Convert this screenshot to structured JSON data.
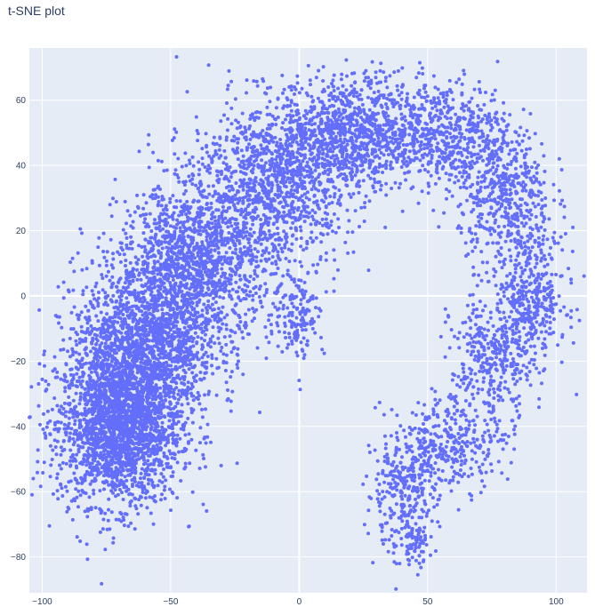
{
  "chart_data": {
    "type": "scatter",
    "title": "t-SNE plot",
    "xlabel": "",
    "ylabel": "",
    "xlim": [
      -105,
      112
    ],
    "ylim": [
      -91,
      76
    ],
    "grid": true,
    "legend": "none",
    "x_ticks": [
      -100,
      -50,
      0,
      50,
      100
    ],
    "y_ticks": [
      -80,
      -60,
      -40,
      -20,
      0,
      20,
      40,
      60
    ],
    "x_tick_labels": [
      "−100",
      "−50",
      "0",
      "50",
      "100"
    ],
    "y_tick_labels": [
      "−80",
      "−60",
      "−40",
      "−20",
      "0",
      "20",
      "40",
      "60"
    ],
    "approx_point_count": 9000,
    "series": [
      {
        "color": "#636efa",
        "marker_size": 3,
        "regions": [
          {
            "cx": -70,
            "cy": -40,
            "sx": 12,
            "sy": 12,
            "n": 2200
          },
          {
            "cx": -60,
            "cy": -15,
            "sx": 14,
            "sy": 12,
            "n": 1500
          },
          {
            "cx": -40,
            "cy": 10,
            "sx": 15,
            "sy": 12,
            "n": 1400
          },
          {
            "cx": -10,
            "cy": 35,
            "sx": 16,
            "sy": 12,
            "n": 1100
          },
          {
            "cx": 20,
            "cy": 50,
            "sx": 14,
            "sy": 9,
            "n": 900
          },
          {
            "cx": 55,
            "cy": 50,
            "sx": 14,
            "sy": 8,
            "n": 600
          },
          {
            "cx": 80,
            "cy": 30,
            "sx": 9,
            "sy": 10,
            "n": 450
          },
          {
            "cx": 90,
            "cy": 0,
            "sx": 7,
            "sy": 10,
            "n": 400
          },
          {
            "cx": 75,
            "cy": -20,
            "sx": 8,
            "sy": 10,
            "n": 350
          },
          {
            "cx": 60,
            "cy": -45,
            "sx": 10,
            "sy": 7,
            "n": 300
          },
          {
            "cx": 40,
            "cy": -60,
            "sx": 7,
            "sy": 9,
            "n": 300
          },
          {
            "cx": 45,
            "cy": -75,
            "sx": 3,
            "sy": 4,
            "n": 60
          },
          {
            "cx": 0,
            "cy": -5,
            "sx": 5,
            "sy": 7,
            "n": 150
          }
        ]
      }
    ]
  }
}
